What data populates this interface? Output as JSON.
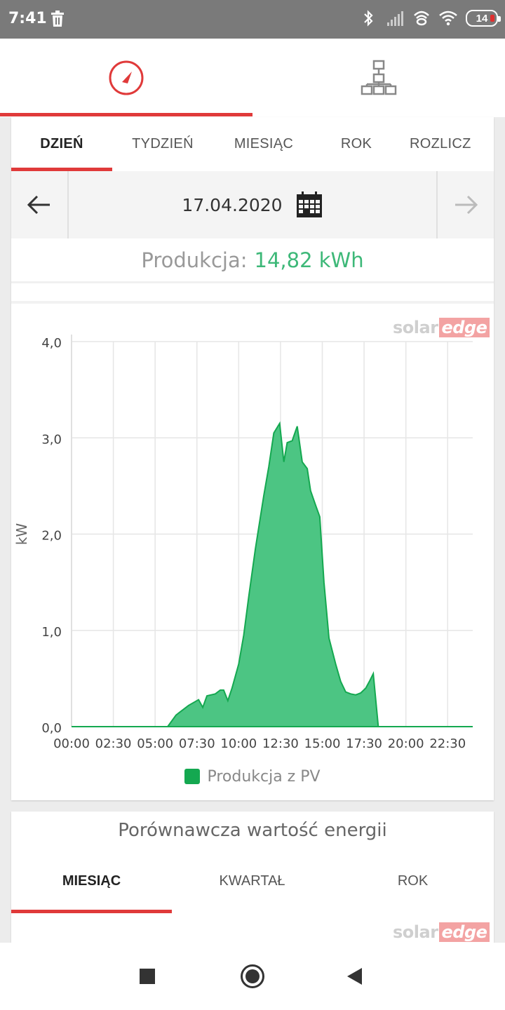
{
  "status_bar": {
    "time": "7:41",
    "battery": "14",
    "icons": [
      "trash-icon",
      "bluetooth-icon",
      "signal-icon",
      "hotspot-icon",
      "wifi-icon",
      "battery-icon"
    ]
  },
  "top_tabs": {
    "items": [
      {
        "icon": "gauge-icon",
        "active": true
      },
      {
        "icon": "site-layout-icon",
        "active": false
      }
    ]
  },
  "period_tabs": {
    "items": [
      {
        "label": "DZIEŃ",
        "active": true
      },
      {
        "label": "TYDZIEŃ",
        "active": false
      },
      {
        "label": "MIESIĄC",
        "active": false
      },
      {
        "label": "ROK",
        "active": false
      },
      {
        "label": "ROZLICZ",
        "active": false
      }
    ]
  },
  "date_nav": {
    "date": "17.04.2020",
    "prev_icon": "arrow-left-icon",
    "next_icon": "arrow-right-icon",
    "calendar_icon": "calendar-icon"
  },
  "production": {
    "label": "Produkcja:",
    "value": "14,82 kWh"
  },
  "logo": {
    "part1": "solar",
    "part2": "edge"
  },
  "colors": {
    "accent": "#e03a3a",
    "green_value": "#3db878",
    "area_fill": "#4cc583",
    "area_stroke": "#14a850"
  },
  "chart_data": {
    "type": "area",
    "ylabel": "kW",
    "ylim": [
      0,
      4
    ],
    "yticks": [
      "0,0",
      "1,0",
      "2,0",
      "3,0",
      "4,0"
    ],
    "xlim": [
      0,
      24
    ],
    "xticks": [
      "00:00",
      "02:30",
      "05:00",
      "07:30",
      "10:00",
      "12:30",
      "15:00",
      "17:30",
      "20:00",
      "22:30"
    ],
    "series": [
      {
        "name": "Produkcja z PV",
        "x": [
          0,
          5.75,
          6.25,
          7.0,
          7.6,
          7.85,
          8.1,
          8.6,
          8.9,
          9.1,
          9.35,
          9.6,
          10.0,
          10.3,
          10.6,
          11.0,
          11.5,
          11.8,
          12.1,
          12.45,
          12.7,
          12.9,
          13.2,
          13.5,
          13.8,
          14.1,
          14.3,
          14.6,
          14.85,
          15.1,
          15.4,
          15.8,
          16.1,
          16.4,
          16.7,
          17.0,
          17.3,
          17.6,
          17.85,
          18.05,
          18.35,
          24
        ],
        "y": [
          0,
          0,
          0.12,
          0.22,
          0.28,
          0.2,
          0.32,
          0.34,
          0.38,
          0.38,
          0.27,
          0.4,
          0.65,
          0.95,
          1.35,
          1.85,
          2.4,
          2.7,
          3.05,
          3.15,
          2.75,
          2.95,
          2.97,
          3.12,
          2.75,
          2.68,
          2.45,
          2.3,
          2.18,
          1.5,
          0.92,
          0.65,
          0.47,
          0.36,
          0.34,
          0.33,
          0.35,
          0.4,
          0.48,
          0.55,
          0,
          0
        ]
      }
    ],
    "legend": "bottom",
    "grid": true
  },
  "comparison": {
    "title": "Porównawcza wartość energii",
    "tabs": [
      {
        "label": "MIESIĄC",
        "active": true
      },
      {
        "label": "KWARTAŁ",
        "active": false
      },
      {
        "label": "ROK",
        "active": false
      }
    ]
  },
  "nav_bar": {
    "icons": [
      "recent-apps-icon",
      "home-icon",
      "back-icon"
    ]
  }
}
